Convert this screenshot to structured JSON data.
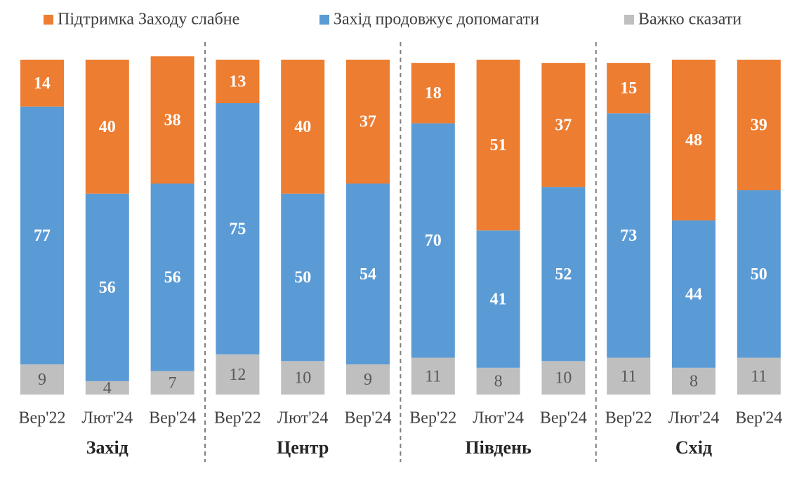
{
  "chart_data": {
    "type": "stacked-bar",
    "groups": [
      "Захід",
      "Центр",
      "Південь",
      "Схід"
    ],
    "categories": [
      "Вер'22",
      "Лют'24",
      "Вер'24",
      "Вер'22",
      "Лют'24",
      "Вер'24",
      "Вер'22",
      "Лют'24",
      "Вер'24",
      "Вер'22",
      "Лют'24",
      "Вер'24"
    ],
    "series": [
      {
        "name": "Підтримка Заходу слабне",
        "color": "#ed7d31",
        "values": [
          14,
          40,
          38,
          13,
          40,
          37,
          18,
          51,
          37,
          15,
          48,
          39
        ]
      },
      {
        "name": "Захід продовжує допомагати",
        "color": "#5b9bd5",
        "values": [
          77,
          56,
          56,
          75,
          50,
          54,
          70,
          41,
          52,
          73,
          44,
          50
        ]
      },
      {
        "name": "Важко сказати",
        "color": "#bfbfbf",
        "values": [
          9,
          4,
          7,
          12,
          10,
          9,
          11,
          8,
          10,
          11,
          8,
          11
        ]
      }
    ]
  }
}
